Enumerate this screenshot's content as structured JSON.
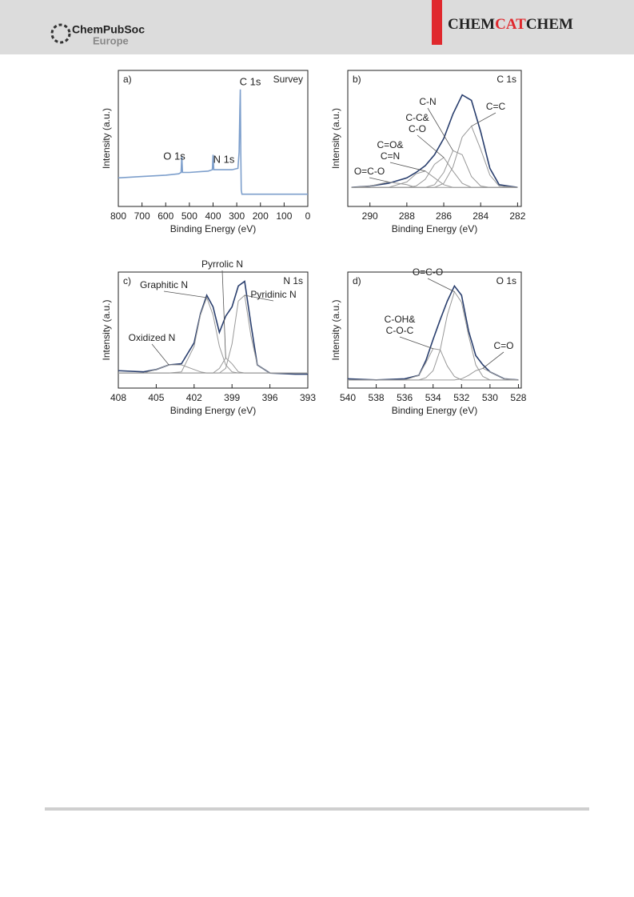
{
  "header": {
    "publisher": "ChemPubSoc",
    "publisher_sub": "Europe",
    "journal_parts": [
      "CHEM",
      "CAT",
      "CHEM"
    ]
  },
  "chart_data": [
    {
      "type": "line",
      "panel": "a)",
      "title": "Survey",
      "xlabel": "Binding Energy (eV)",
      "ylabel": "Intensity (a.u.)",
      "x": [
        800,
        700,
        600,
        545,
        535,
        532,
        529,
        500,
        420,
        403,
        400,
        397,
        320,
        295,
        290,
        287,
        285,
        283,
        281,
        278,
        250,
        200,
        100,
        0
      ],
      "xlim": [
        800,
        0
      ],
      "xticks": [
        800,
        700,
        600,
        500,
        400,
        300,
        200,
        100,
        0
      ],
      "ylim": [
        0,
        100
      ],
      "series": [
        {
          "color": "#7d9fcc",
          "values": [
            21,
            22,
            23,
            24,
            25,
            37,
            25,
            25,
            26,
            27,
            38,
            27,
            27,
            28,
            40,
            70,
            86,
            40,
            12,
            9,
            9,
            9,
            9,
            9
          ]
        }
      ],
      "annotations": [
        "O 1s",
        "N 1s",
        "C 1s"
      ]
    },
    {
      "type": "line",
      "panel": "b)",
      "title": "C 1s",
      "xlabel": "Binding Energy (eV)",
      "ylabel": "Intensity (a.u.)",
      "x": [
        291,
        290,
        289,
        288,
        287.5,
        287,
        286.5,
        286,
        285.5,
        285,
        284.5,
        284,
        283.5,
        283,
        282
      ],
      "xlim": [
        291.2,
        281.8
      ],
      "xticks": [
        290,
        288,
        286,
        284,
        282
      ],
      "ylim": [
        0,
        100
      ],
      "series": [
        {
          "color": "#2a3f6e",
          "values": [
            14,
            15,
            17,
            21,
            25,
            30,
            38,
            50,
            68,
            82,
            78,
            55,
            28,
            16,
            14
          ]
        },
        {
          "name": "C=C",
          "color": "#999999",
          "values": [
            14,
            14,
            14,
            14,
            14,
            14,
            14,
            17,
            29,
            51,
            59,
            42,
            23,
            15,
            14
          ]
        },
        {
          "name": "C-N",
          "color": "#999999",
          "values": [
            14,
            14,
            14,
            14,
            14,
            14,
            16,
            25,
            41,
            38,
            22,
            15,
            14,
            14,
            14
          ]
        },
        {
          "name": "C-C&\nC-O",
          "color": "#999999",
          "values": [
            14,
            14,
            14,
            14,
            15,
            20,
            31,
            36,
            26,
            17,
            14,
            14,
            14,
            14,
            14
          ]
        },
        {
          "name": "C=O&\nC=N",
          "color": "#999999",
          "values": [
            14,
            14,
            14,
            18,
            24,
            26,
            21,
            16,
            14,
            14,
            14,
            14,
            14,
            14,
            14
          ]
        },
        {
          "name": "O=C-O",
          "color": "#999999",
          "values": [
            14,
            15,
            18,
            16,
            14,
            14,
            14,
            14,
            14,
            14,
            14,
            14,
            14,
            14,
            14
          ]
        }
      ]
    },
    {
      "type": "line",
      "panel": "c)",
      "title": "N 1s",
      "xlabel": "Binding Energy (eV)",
      "ylabel": "Intensity (a.u.)",
      "x": [
        408,
        406,
        405,
        404,
        403,
        402,
        401.5,
        401,
        400.5,
        400,
        399.5,
        399,
        398.5,
        398,
        397.5,
        397,
        396,
        394,
        393
      ],
      "xlim": [
        408,
        393
      ],
      "xticks": [
        408,
        405,
        402,
        399,
        396,
        393
      ],
      "ylim": [
        0,
        100
      ],
      "series": [
        {
          "color": "#2a3f6e",
          "values": [
            15,
            14,
            16,
            20,
            21,
            39,
            64,
            80,
            70,
            48,
            62,
            70,
            88,
            92,
            55,
            20,
            13,
            12,
            12
          ]
        },
        {
          "name": "Oxidized N",
          "color": "#999999",
          "values": [
            13,
            13,
            16,
            20,
            20,
            16,
            14,
            13,
            13,
            13,
            13,
            13,
            13,
            13,
            13,
            13,
            13,
            13,
            13
          ]
        },
        {
          "name": "Graphitic N",
          "color": "#999999",
          "values": [
            13,
            13,
            13,
            13,
            14,
            36,
            63,
            78,
            63,
            36,
            20,
            14,
            13,
            13,
            13,
            13,
            13,
            13,
            13
          ]
        },
        {
          "name": "Pyrrolic N",
          "color": "#999999",
          "values": [
            13,
            13,
            13,
            13,
            13,
            13,
            13,
            13,
            13,
            17,
            26,
            21,
            14,
            13,
            13,
            13,
            13,
            13,
            13
          ]
        },
        {
          "name": "Pyridinic N",
          "color": "#999999",
          "values": [
            13,
            13,
            13,
            13,
            13,
            13,
            13,
            13,
            13,
            13,
            17,
            38,
            75,
            80,
            45,
            20,
            13,
            13,
            13
          ]
        }
      ]
    },
    {
      "type": "line",
      "panel": "d)",
      "title": "O 1s",
      "xlabel": "Binding Energy (eV)",
      "ylabel": "Intensity (a.u.)",
      "x": [
        540,
        538,
        536,
        535,
        534.5,
        534,
        533.5,
        533,
        532.5,
        532,
        531.5,
        531,
        530.5,
        530,
        529,
        528
      ],
      "xlim": [
        540,
        527.8
      ],
      "xticks": [
        540,
        538,
        536,
        534,
        532,
        530,
        528
      ],
      "ylim": [
        0,
        100
      ],
      "series": [
        {
          "color": "#2a3f6e",
          "values": [
            8,
            7,
            8,
            11,
            24,
            42,
            59,
            75,
            88,
            80,
            49,
            28,
            20,
            14,
            8,
            7
          ]
        },
        {
          "name": "C-OH&\nC-O-C",
          "color": "#999999",
          "values": [
            7,
            7,
            7,
            11,
            22,
            34,
            33,
            19,
            10,
            7,
            7,
            7,
            7,
            7,
            7,
            7
          ]
        },
        {
          "name": "O=C-O",
          "color": "#999999",
          "values": [
            7,
            7,
            7,
            7,
            9,
            15,
            33,
            63,
            83,
            74,
            45,
            20,
            10,
            7,
            7,
            7
          ]
        },
        {
          "name": "C=O",
          "color": "#999999",
          "values": [
            7,
            7,
            7,
            7,
            7,
            7,
            7,
            7,
            7,
            8,
            11,
            15,
            17,
            14,
            8,
            7
          ]
        }
      ]
    }
  ]
}
